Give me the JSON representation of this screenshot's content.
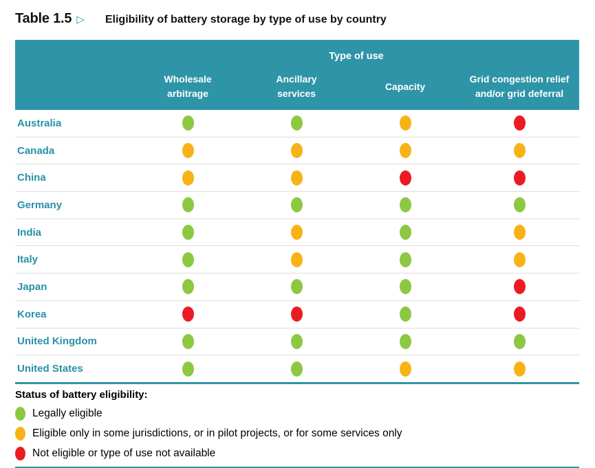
{
  "title": {
    "table_label": "Table 1.5",
    "arrow": "▷",
    "text": "Eligibility of battery storage by type of use by country"
  },
  "table": {
    "group_header": "Type of use",
    "columns": [
      "Wholesale\narbitrage",
      "Ancillary\nservices",
      "Capacity",
      "Grid congestion relief\nand/or grid deferral"
    ],
    "rows": [
      {
        "country": "Australia",
        "statuses": [
          "green",
          "green",
          "yellow",
          "red"
        ]
      },
      {
        "country": "Canada",
        "statuses": [
          "yellow",
          "yellow",
          "yellow",
          "yellow"
        ]
      },
      {
        "country": "China",
        "statuses": [
          "yellow",
          "yellow",
          "red",
          "red"
        ]
      },
      {
        "country": "Germany",
        "statuses": [
          "green",
          "green",
          "green",
          "green"
        ]
      },
      {
        "country": "India",
        "statuses": [
          "green",
          "yellow",
          "green",
          "yellow"
        ]
      },
      {
        "country": "Italy",
        "statuses": [
          "green",
          "yellow",
          "green",
          "yellow"
        ]
      },
      {
        "country": "Japan",
        "statuses": [
          "green",
          "green",
          "green",
          "red"
        ]
      },
      {
        "country": "Korea",
        "statuses": [
          "red",
          "red",
          "green",
          "red"
        ]
      },
      {
        "country": "United Kingdom",
        "statuses": [
          "green",
          "green",
          "green",
          "green"
        ]
      },
      {
        "country": "United States",
        "statuses": [
          "green",
          "green",
          "yellow",
          "yellow"
        ]
      }
    ]
  },
  "legend": {
    "title": "Status of battery eligibility:",
    "items": [
      {
        "status": "green",
        "label": "Legally eligible"
      },
      {
        "status": "yellow",
        "label": "Eligible only in some jurisdictions, or in pilot projects, or for some services only"
      },
      {
        "status": "red",
        "label": "Not eligible or type of use not available"
      }
    ]
  },
  "colors": {
    "teal": "#2e94a8",
    "country_text": "#2791a7",
    "green": "#8cc841",
    "yellow": "#f7b316",
    "red": "#ec1b23",
    "row_separator": "#dcdcdc"
  },
  "chart_data": {
    "type": "table",
    "title": "Table 1.5 ▷ Eligibility of battery storage by type of use by country",
    "group_header": "Type of use",
    "columns": [
      "Wholesale arbitrage",
      "Ancillary services",
      "Capacity",
      "Grid congestion relief and/or grid deferral"
    ],
    "rows": [
      {
        "country": "Australia",
        "values": [
          "green",
          "green",
          "yellow",
          "red"
        ]
      },
      {
        "country": "Canada",
        "values": [
          "yellow",
          "yellow",
          "yellow",
          "yellow"
        ]
      },
      {
        "country": "China",
        "values": [
          "yellow",
          "yellow",
          "red",
          "red"
        ]
      },
      {
        "country": "Germany",
        "values": [
          "green",
          "green",
          "green",
          "green"
        ]
      },
      {
        "country": "India",
        "values": [
          "green",
          "yellow",
          "green",
          "yellow"
        ]
      },
      {
        "country": "Italy",
        "values": [
          "green",
          "yellow",
          "green",
          "yellow"
        ]
      },
      {
        "country": "Japan",
        "values": [
          "green",
          "green",
          "green",
          "red"
        ]
      },
      {
        "country": "Korea",
        "values": [
          "red",
          "red",
          "green",
          "red"
        ]
      },
      {
        "country": "United Kingdom",
        "values": [
          "green",
          "green",
          "green",
          "green"
        ]
      },
      {
        "country": "United States",
        "values": [
          "green",
          "green",
          "yellow",
          "yellow"
        ]
      }
    ],
    "status_meanings": {
      "green": "Legally eligible",
      "yellow": "Eligible only in some jurisdictions, or in pilot projects, or for some services only",
      "red": "Not eligible or type of use not available"
    },
    "legend_position": "bottom"
  }
}
